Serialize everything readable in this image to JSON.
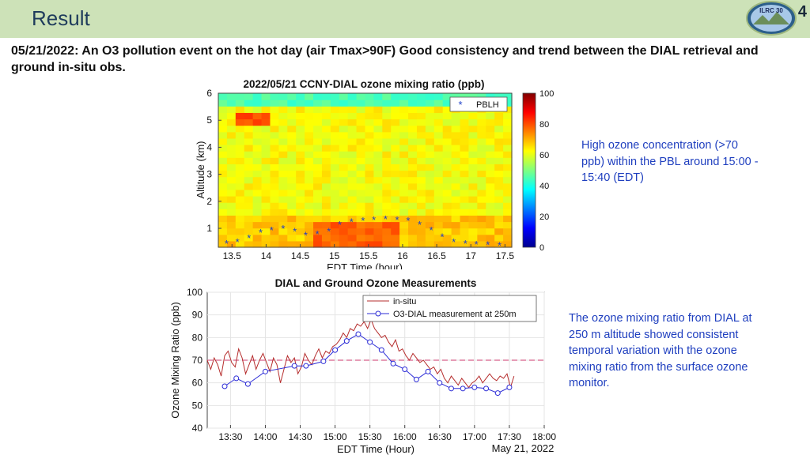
{
  "slide": {
    "title": "Result",
    "page_number": "4",
    "logo_text": "ILRC 30",
    "subtitle": "05/21/2022: An O3 pollution event on the hot day (air Tmax>90F) Good consistency and trend between the DIAL retrieval and ground in-situ obs."
  },
  "notes": {
    "note1": "High ozone concentration (>70 ppb) within the PBL around 15:00 - 15:40 (EDT)",
    "note2": "The ozone mixing ratio from DIAL at 250 m altitude showed consistent temporal variation with the ozone mixing ratio from the surface ozone monitor."
  },
  "colors": {
    "header_bg": "#cde2b8",
    "note_text": "#1f3fbf",
    "insitu_line": "#b52c2c",
    "dial_line": "#2b2bd6",
    "reference_line": "#d6608a"
  },
  "chart_data": [
    {
      "type": "heatmap",
      "title": "2022/05/21 CCNY-DIAL ozone mixing ratio (ppb)",
      "xlabel": "EDT Time (hour)",
      "ylabel": "Altitude (km)",
      "xlim": [
        13.3,
        17.6
      ],
      "ylim": [
        0.3,
        6
      ],
      "xticks": [
        "13.5",
        "14",
        "14.5",
        "15",
        "15.5",
        "16",
        "16.5",
        "17",
        "17.5"
      ],
      "yticks": [
        "1",
        "2",
        "3",
        "4",
        "5",
        "6"
      ],
      "colorbar": {
        "range": [
          0,
          100
        ],
        "ticks": [
          "0",
          "20",
          "40",
          "60",
          "80",
          "100"
        ]
      },
      "legend": {
        "position": "top-right",
        "entries": [
          "PBLH"
        ]
      },
      "pblh_series": {
        "name": "PBLH",
        "x": [
          13.42,
          13.58,
          13.75,
          13.92,
          14.08,
          14.25,
          14.42,
          14.58,
          14.75,
          14.92,
          15.08,
          15.25,
          15.42,
          15.58,
          15.75,
          15.92,
          16.08,
          16.25,
          16.42,
          16.58,
          16.75,
          16.92,
          17.08,
          17.25,
          17.42
        ],
        "y": [
          0.45,
          0.5,
          0.65,
          0.85,
          0.95,
          1.0,
          0.9,
          0.75,
          0.8,
          0.9,
          1.15,
          1.25,
          1.3,
          1.33,
          1.35,
          1.33,
          1.3,
          1.15,
          0.95,
          0.7,
          0.5,
          0.45,
          0.42,
          0.4,
          0.38
        ]
      },
      "ozone_grid": {
        "description_units": "ppb",
        "altitudes_km": [
          0.5,
          1.0,
          1.5,
          2.0,
          2.5,
          3.0,
          3.5,
          4.0,
          4.5,
          5.0,
          5.5
        ],
        "features": [
          {
            "t_range": [
              15.0,
              15.8
            ],
            "alt_range": [
              0.3,
              1.2
            ],
            "value": 88
          },
          {
            "t_range": [
              14.7,
              16.0
            ],
            "alt_range": [
              0.3,
              1.3
            ],
            "value": 78
          },
          {
            "t_range": [
              13.6,
              14.0
            ],
            "alt_range": [
              4.8,
              5.3
            ],
            "value": 80
          },
          {
            "t_range": [
              13.3,
              17.6
            ],
            "alt_range": [
              5.5,
              6.0
            ],
            "value": 45
          }
        ],
        "background_value": 62
      }
    },
    {
      "type": "line",
      "title": "DIAL and Ground Ozone Measurements",
      "xlabel": "EDT Time (Hour)",
      "ylabel": "Ozone Mixing Ratio (ppb)",
      "ylim": [
        40,
        100
      ],
      "xlim": [
        "13:10",
        "18:00"
      ],
      "xticks": [
        "13:30",
        "14:00",
        "14:30",
        "15:00",
        "15:30",
        "16:00",
        "16:30",
        "17:00",
        "17:30",
        "18:00"
      ],
      "yticks": [
        "40",
        "50",
        "60",
        "70",
        "80",
        "90",
        "100"
      ],
      "date_label": "May 21, 2022",
      "reference_line": 70,
      "legend": {
        "position": "top-right"
      },
      "series": [
        {
          "name": "in-situ",
          "x": [
            "13:10",
            "13:13",
            "13:16",
            "13:19",
            "13:22",
            "13:25",
            "13:28",
            "13:31",
            "13:34",
            "13:37",
            "13:40",
            "13:43",
            "13:46",
            "13:49",
            "13:52",
            "13:55",
            "13:58",
            "14:01",
            "14:04",
            "14:07",
            "14:10",
            "14:13",
            "14:16",
            "14:19",
            "14:22",
            "14:25",
            "14:28",
            "14:31",
            "14:34",
            "14:37",
            "14:40",
            "14:43",
            "14:46",
            "14:49",
            "14:52",
            "14:55",
            "14:58",
            "15:01",
            "15:04",
            "15:07",
            "15:10",
            "15:13",
            "15:16",
            "15:19",
            "15:22",
            "15:25",
            "15:28",
            "15:31",
            "15:34",
            "15:37",
            "15:40",
            "15:43",
            "15:46",
            "15:49",
            "15:52",
            "15:55",
            "15:58",
            "16:01",
            "16:04",
            "16:07",
            "16:10",
            "16:13",
            "16:16",
            "16:19",
            "16:22",
            "16:25",
            "16:28",
            "16:31",
            "16:34",
            "16:37",
            "16:40",
            "16:43",
            "16:46",
            "16:49",
            "16:52",
            "16:55",
            "16:58",
            "17:01",
            "17:04",
            "17:07",
            "17:10",
            "17:13",
            "17:16",
            "17:19",
            "17:22",
            "17:25",
            "17:28",
            "17:31",
            "17:34"
          ],
          "values": [
            70,
            66,
            71,
            68,
            63,
            72,
            74,
            69,
            67,
            75,
            71,
            64,
            68,
            72,
            66,
            70,
            73,
            69,
            65,
            71,
            68,
            60,
            66,
            72,
            69,
            71,
            64,
            67,
            73,
            70,
            68,
            72,
            75,
            71,
            74,
            73,
            76,
            77,
            79,
            82,
            80,
            84,
            83,
            86,
            85,
            87,
            84,
            88,
            84,
            82,
            80,
            81,
            78,
            76,
            79,
            74,
            75,
            72,
            70,
            73,
            71,
            69,
            70,
            68,
            66,
            67,
            64,
            66,
            62,
            60,
            63,
            61,
            59,
            62,
            60,
            58,
            60,
            61,
            63,
            60,
            62,
            64,
            62,
            61,
            63,
            62,
            64,
            58,
            63
          ]
        },
        {
          "name": "O3-DIAL measurement at 250m",
          "x": [
            "13:25",
            "13:35",
            "13:45",
            "14:00",
            "14:25",
            "14:35",
            "14:50",
            "15:00",
            "15:10",
            "15:20",
            "15:30",
            "15:40",
            "15:50",
            "16:00",
            "16:10",
            "16:20",
            "16:30",
            "16:40",
            "16:50",
            "17:00",
            "17:10",
            "17:20",
            "17:30"
          ],
          "values": [
            58.5,
            62,
            59.5,
            65,
            67.5,
            67.5,
            69.5,
            74.5,
            78.5,
            81.5,
            78,
            74.5,
            68.5,
            66,
            61.5,
            65,
            60,
            57.5,
            57.5,
            58,
            57.5,
            55.5,
            58
          ]
        }
      ]
    }
  ]
}
